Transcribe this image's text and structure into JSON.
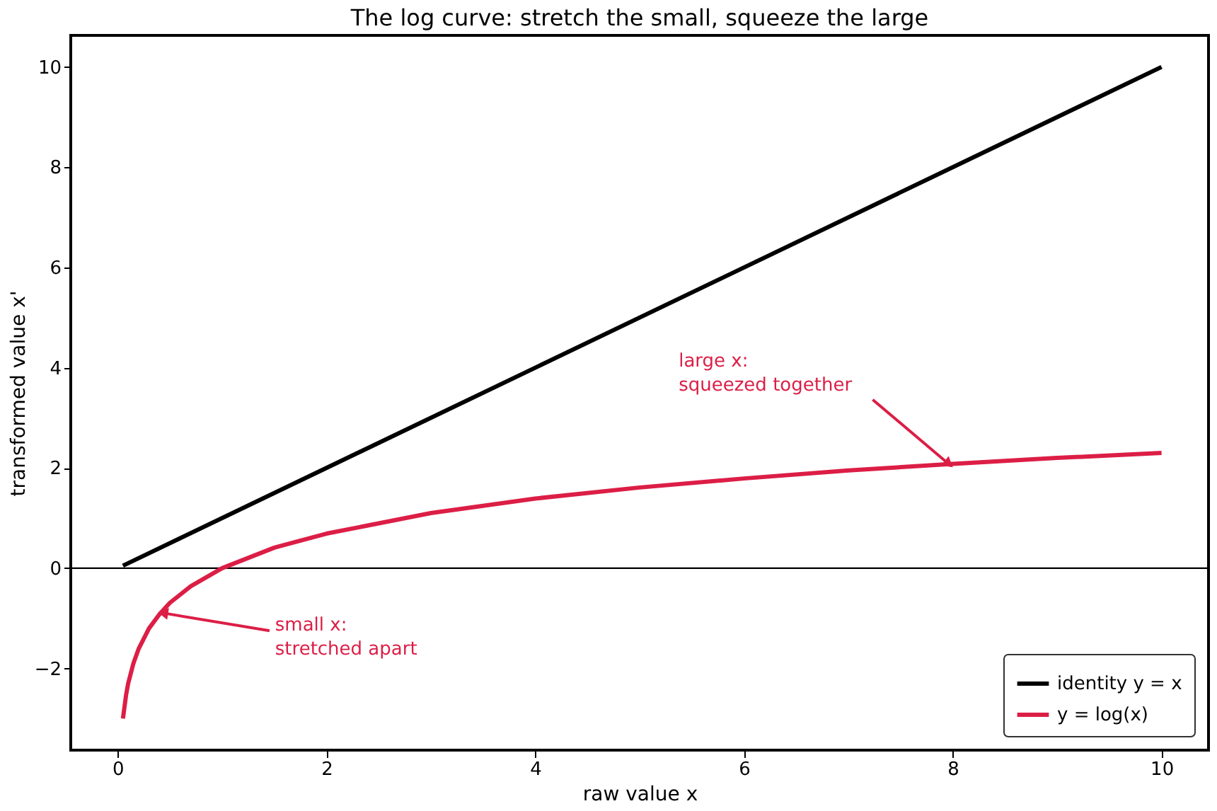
{
  "chart_data": {
    "type": "line",
    "title": "The log curve: stretch the small, squeeze the large",
    "xlabel": "raw value  x",
    "ylabel": "transformed value  x'",
    "series": [
      {
        "name": "identity y = x",
        "color": "#000000",
        "x": [
          0.05,
          10
        ],
        "values": [
          0.05,
          10
        ]
      },
      {
        "name": "y = log(x)",
        "color": "#dc1e46",
        "x": [
          0.05,
          0.08,
          0.1,
          0.15,
          0.2,
          0.3,
          0.4,
          0.5,
          0.7,
          1,
          1.5,
          2,
          3,
          4,
          5,
          6,
          7,
          8,
          9,
          10
        ],
        "values": [
          -3.0,
          -2.53,
          -2.3,
          -1.9,
          -1.61,
          -1.2,
          -0.92,
          -0.69,
          -0.36,
          0,
          0.41,
          0.69,
          1.1,
          1.39,
          1.61,
          1.79,
          1.95,
          2.08,
          2.2,
          2.3
        ]
      }
    ],
    "xlim": [
      -0.45,
      10.45
    ],
    "ylim": [
      -3.63,
      10.63
    ],
    "xticks": [
      0,
      2,
      4,
      6,
      8,
      10
    ],
    "yticks": [
      {
        "value": -2,
        "label": "−2"
      },
      0,
      2,
      4,
      6,
      8,
      10
    ],
    "ref_lines": [
      {
        "axis": "y",
        "value": 0,
        "color": "#000000"
      }
    ],
    "annotations": [
      {
        "text": "large x:\nsqueezed together",
        "x": 7.95,
        "y": 2.1
      },
      {
        "text": "small x:\nstretched apart",
        "x": 0.45,
        "y": -0.9
      }
    ],
    "grid": false,
    "legend": "bottom right"
  }
}
